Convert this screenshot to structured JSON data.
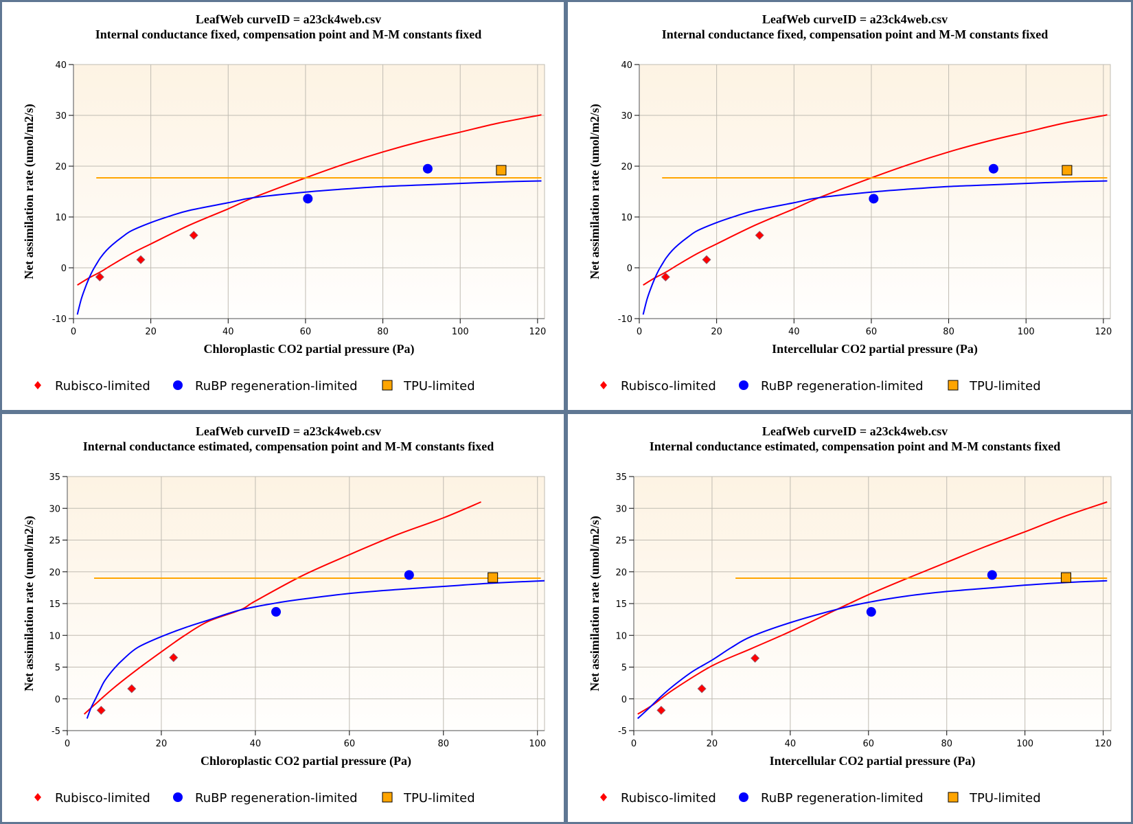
{
  "colors": {
    "border": "#5f7793",
    "rubisco": "#ff0000",
    "rubp": "#0000ff",
    "tpu": "#ffa500",
    "grid": "#bfbbb2",
    "axis": "#8a8a8a",
    "plot_bg_top": "#fdf3e3",
    "plot_bg_bottom": "#fffefd"
  },
  "legend": {
    "rubisco": "Rubisco-limited",
    "rubp": "RuBP regeneration-limited",
    "tpu": "TPU-limited"
  },
  "chart_data": [
    {
      "type": "line",
      "title": "LeafWeb curveID = a23ck4web.csv",
      "subtitle": "Internal conductance fixed, compensation point and M-M constants fixed",
      "xlabel": "Chloroplastic CO2 partial pressure (Pa)",
      "ylabel": "Net assimilation rate (umol/m2/s)",
      "xlim": [
        0,
        121.8
      ],
      "ylim": [
        -10,
        40
      ],
      "xticks": [
        0,
        20,
        40,
        60,
        80,
        100,
        120
      ],
      "yticks": [
        -10,
        0,
        10,
        20,
        30,
        40
      ],
      "grid": true,
      "legend_position": "bottom",
      "series": [
        {
          "name": "Rubisco-limited fit",
          "kind": "line",
          "color_key": "rubisco",
          "x": [
            1,
            4,
            7,
            10,
            15,
            20,
            30,
            40,
            46.5,
            60,
            70,
            80,
            90,
            100,
            110,
            121
          ],
          "y": [
            -3.4,
            -2.0,
            -0.8,
            0.6,
            2.8,
            4.7,
            8.4,
            11.6,
            13.8,
            17.7,
            20.4,
            22.8,
            24.9,
            26.7,
            28.5,
            30.1
          ]
        },
        {
          "name": "RuBP regeneration-limited fit",
          "kind": "line",
          "color_key": "rubp",
          "x": [
            1,
            2,
            3,
            4,
            5,
            6,
            7,
            8.5,
            10,
            12.5,
            15,
            20,
            25,
            30,
            40,
            46.5,
            60,
            70,
            80,
            90,
            100,
            110,
            121
          ],
          "y": [
            -9.2,
            -6.2,
            -4.0,
            -2.1,
            -0.5,
            0.8,
            2.0,
            3.4,
            4.5,
            6.0,
            7.3,
            8.9,
            10.2,
            11.3,
            12.8,
            13.8,
            14.9,
            15.5,
            16.0,
            16.3,
            16.6,
            16.9,
            17.1
          ]
        },
        {
          "name": "TPU-limited fit",
          "kind": "line",
          "color_key": "tpu",
          "x": [
            5.9,
            121
          ],
          "y": [
            17.7,
            17.7
          ]
        },
        {
          "name": "Rubisco-limited",
          "kind": "diamond",
          "color_key": "rubisco",
          "x": [
            6.8,
            17.4,
            31.1
          ],
          "y": [
            -1.8,
            1.6,
            6.4
          ]
        },
        {
          "name": "RuBP regeneration-limited",
          "kind": "circle",
          "color_key": "rubp",
          "x": [
            60.6,
            91.6
          ],
          "y": [
            13.6,
            19.5
          ]
        },
        {
          "name": "TPU-limited",
          "kind": "square",
          "color_key": "tpu",
          "x": [
            110.6
          ],
          "y": [
            19.2
          ]
        }
      ]
    },
    {
      "type": "line",
      "title": "LeafWeb curveID = a23ck4web.csv",
      "subtitle": "Internal conductance fixed, compensation point and M-M constants fixed",
      "xlabel": "Intercellular CO2 partial pressure (Pa)",
      "ylabel": "Net assimilation rate (umol/m2/s)",
      "xlim": [
        0,
        121.8
      ],
      "ylim": [
        -10,
        40
      ],
      "xticks": [
        0,
        20,
        40,
        60,
        80,
        100,
        120
      ],
      "yticks": [
        -10,
        0,
        10,
        20,
        30,
        40
      ],
      "grid": true,
      "legend_position": "bottom",
      "series": [
        {
          "name": "Rubisco-limited fit",
          "kind": "line",
          "color_key": "rubisco",
          "x": [
            1,
            4,
            7,
            10,
            15,
            20,
            30,
            40,
            46.5,
            60,
            70,
            80,
            90,
            100,
            110,
            121
          ],
          "y": [
            -3.4,
            -2.0,
            -0.8,
            0.6,
            2.8,
            4.7,
            8.4,
            11.6,
            13.8,
            17.7,
            20.4,
            22.8,
            24.9,
            26.7,
            28.5,
            30.1
          ]
        },
        {
          "name": "RuBP regeneration-limited fit",
          "kind": "line",
          "color_key": "rubp",
          "x": [
            1,
            2,
            3,
            4,
            5,
            6,
            7,
            8.5,
            10,
            12.5,
            15,
            20,
            25,
            30,
            40,
            46.5,
            60,
            70,
            80,
            90,
            100,
            110,
            121
          ],
          "y": [
            -9.2,
            -6.2,
            -4.0,
            -2.1,
            -0.5,
            0.8,
            2.0,
            3.4,
            4.5,
            6.0,
            7.3,
            8.9,
            10.2,
            11.3,
            12.8,
            13.8,
            14.9,
            15.5,
            16.0,
            16.3,
            16.6,
            16.9,
            17.1
          ]
        },
        {
          "name": "TPU-limited fit",
          "kind": "line",
          "color_key": "tpu",
          "x": [
            5.9,
            121
          ],
          "y": [
            17.7,
            17.7
          ]
        },
        {
          "name": "Rubisco-limited",
          "kind": "diamond",
          "color_key": "rubisco",
          "x": [
            6.8,
            17.4,
            31.1
          ],
          "y": [
            -1.8,
            1.6,
            6.4
          ]
        },
        {
          "name": "RuBP regeneration-limited",
          "kind": "circle",
          "color_key": "rubp",
          "x": [
            60.6,
            91.6
          ],
          "y": [
            13.6,
            19.5
          ]
        },
        {
          "name": "TPU-limited",
          "kind": "square",
          "color_key": "tpu",
          "x": [
            110.6
          ],
          "y": [
            19.2
          ]
        }
      ]
    },
    {
      "type": "line",
      "title": "LeafWeb curveID = a23ck4web.csv",
      "subtitle": "Internal conductance estimated, compensation point and M-M constants fixed",
      "xlabel": "Chloroplastic CO2 partial pressure (Pa)",
      "ylabel": "Net assimilation rate (umol/m2/s)",
      "xlim": [
        0,
        101.5
      ],
      "ylim": [
        -5,
        35
      ],
      "xticks": [
        0,
        20,
        40,
        60,
        80,
        100
      ],
      "yticks": [
        -5,
        0,
        5,
        10,
        15,
        20,
        25,
        30,
        35
      ],
      "grid": true,
      "legend_position": "bottom",
      "series": [
        {
          "name": "Rubisco-limited fit",
          "kind": "line",
          "color_key": "rubisco",
          "x": [
            3.6,
            6,
            10,
            15,
            20,
            25,
            30,
            36.8,
            40,
            50,
            60,
            70,
            80,
            88
          ],
          "y": [
            -2.4,
            -0.8,
            1.8,
            4.7,
            7.4,
            10.0,
            12.2,
            14.0,
            15.4,
            19.4,
            22.7,
            25.8,
            28.5,
            31.0
          ]
        },
        {
          "name": "RuBP regeneration-limited fit",
          "kind": "line",
          "color_key": "rubp",
          "x": [
            4.2,
            5,
            6,
            7,
            8,
            10,
            12,
            15,
            20,
            25,
            30,
            36.8,
            44.5,
            50,
            60,
            70,
            80,
            90,
            101.5
          ],
          "y": [
            -3.1,
            -1.5,
            0.0,
            1.5,
            2.9,
            4.8,
            6.3,
            8.1,
            9.8,
            11.2,
            12.4,
            14.0,
            15.1,
            15.7,
            16.6,
            17.2,
            17.7,
            18.2,
            18.6
          ]
        },
        {
          "name": "TPU-limited fit",
          "kind": "line",
          "color_key": "tpu",
          "x": [
            5.7,
            100.7
          ],
          "y": [
            19.0,
            19.0
          ]
        },
        {
          "name": "Rubisco-limited",
          "kind": "diamond",
          "color_key": "rubisco",
          "x": [
            7.2,
            13.7,
            22.6
          ],
          "y": [
            -1.8,
            1.6,
            6.5
          ]
        },
        {
          "name": "RuBP regeneration-limited",
          "kind": "circle",
          "color_key": "rubp",
          "x": [
            44.4,
            72.7
          ],
          "y": [
            13.7,
            19.5
          ]
        },
        {
          "name": "TPU-limited",
          "kind": "square",
          "color_key": "tpu",
          "x": [
            90.5
          ],
          "y": [
            19.1
          ]
        }
      ]
    },
    {
      "type": "line",
      "title": "LeafWeb curveID = a23ck4web.csv",
      "subtitle": "Internal conductance estimated, compensation point and M-M constants fixed",
      "xlabel": "Intercellular CO2 partial pressure (Pa)",
      "ylabel": "Net assimilation rate (umol/m2/s)",
      "xlim": [
        0,
        122
      ],
      "ylim": [
        -5,
        35
      ],
      "xticks": [
        0,
        20,
        40,
        60,
        80,
        100,
        120
      ],
      "yticks": [
        -5,
        0,
        5,
        10,
        15,
        20,
        25,
        30,
        35
      ],
      "grid": true,
      "legend_position": "bottom",
      "series": [
        {
          "name": "Rubisco-limited fit",
          "kind": "line",
          "color_key": "rubisco",
          "x": [
            1,
            5,
            10,
            20,
            30,
            40,
            52,
            60,
            70,
            80,
            90,
            100,
            110,
            121
          ],
          "y": [
            -2.4,
            -0.9,
            1.4,
            5.2,
            7.9,
            10.6,
            14.1,
            16.4,
            19.0,
            21.5,
            24.0,
            26.3,
            28.7,
            31.0
          ]
        },
        {
          "name": "RuBP regeneration-limited fit",
          "kind": "line",
          "color_key": "rubp",
          "x": [
            1,
            4,
            7,
            10,
            15,
            20,
            25,
            30,
            40,
            52,
            60,
            70,
            80,
            90,
            100,
            110,
            121
          ],
          "y": [
            -3.1,
            -1.4,
            0.4,
            2.0,
            4.3,
            6.1,
            8.1,
            9.8,
            12.0,
            14.1,
            15.2,
            16.2,
            16.9,
            17.4,
            17.9,
            18.3,
            18.6
          ]
        },
        {
          "name": "TPU-limited fit",
          "kind": "line",
          "color_key": "tpu",
          "x": [
            26.0,
            121
          ],
          "y": [
            19.0,
            19.0
          ]
        },
        {
          "name": "Rubisco-limited",
          "kind": "diamond",
          "color_key": "rubisco",
          "x": [
            7.0,
            17.4,
            31.0
          ],
          "y": [
            -1.8,
            1.6,
            6.4
          ]
        },
        {
          "name": "RuBP regeneration-limited",
          "kind": "circle",
          "color_key": "rubp",
          "x": [
            60.7,
            91.6
          ],
          "y": [
            13.7,
            19.5
          ]
        },
        {
          "name": "TPU-limited",
          "kind": "square",
          "color_key": "tpu",
          "x": [
            110.5
          ],
          "y": [
            19.1
          ]
        }
      ]
    }
  ]
}
